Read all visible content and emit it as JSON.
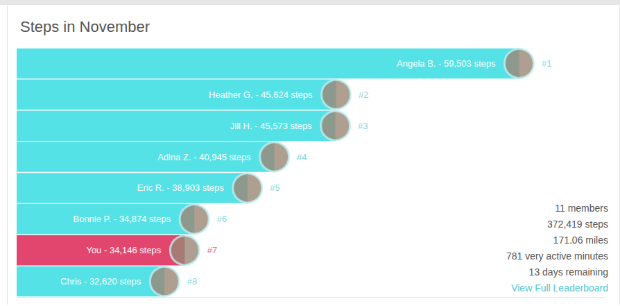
{
  "chart_data": {
    "type": "bar",
    "title": "Steps in November",
    "orientation": "horizontal",
    "categories": [
      "Angela B.",
      "Heather G.",
      "Jill H.",
      "Adina Z.",
      "Eric R.",
      "Bonnie P.",
      "You",
      "Chris"
    ],
    "values": [
      59503,
      45624,
      45573,
      40945,
      38903,
      34874,
      34146,
      32620
    ],
    "value_labels": [
      "Angela B. - 59,503 steps",
      "Heather G. - 45,624 steps",
      "Jill H. - 45,573 steps",
      "Adina Z. - 40,945 steps",
      "Eric R. - 38,903 steps",
      "Bonnie P. - 34,874 steps",
      "You - 34,146 steps",
      "Chris - 32,620 steps"
    ],
    "ranks": [
      "#1",
      "#2",
      "#3",
      "#4",
      "#5",
      "#6",
      "#7",
      "#8"
    ],
    "colors": [
      "#55e2e6",
      "#55e2e6",
      "#55e2e6",
      "#55e2e6",
      "#55e2e6",
      "#55e2e6",
      "#e2466f",
      "#55e2e6"
    ],
    "xlim": [
      21400,
      66000
    ],
    "xticks": [],
    "tick_labels": false,
    "data_labels": true,
    "grid": false,
    "summary": [
      "11 members",
      "372,419 steps",
      "171.06 miles",
      "781 very active minutes",
      "13 days remaining"
    ],
    "link": "View Full Leaderboard"
  }
}
